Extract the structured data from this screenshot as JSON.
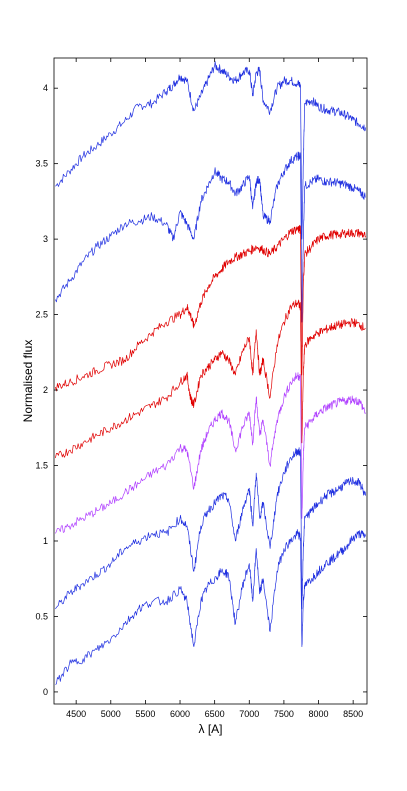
{
  "chart_data": {
    "type": "line",
    "title": "",
    "xlabel": "λ [A]",
    "ylabel": "Normalised flux",
    "xlim": [
      4180,
      8700
    ],
    "ylim": [
      -0.08,
      4.2
    ],
    "xticks": [
      4500,
      5000,
      5500,
      6000,
      6500,
      7000,
      7500,
      8000,
      8500
    ],
    "xtick_labels": [
      "4500",
      "5000",
      "5500",
      "6000",
      "6500",
      "7000",
      "7500",
      "8000",
      "8500"
    ],
    "yticks": [
      0,
      0.5,
      1,
      1.5,
      2,
      2.5,
      3,
      3.5,
      4
    ],
    "ytick_labels": [
      "0",
      "0.5",
      "1",
      "1.5",
      "2",
      "2.5",
      "3",
      "3.5",
      "4"
    ],
    "grid": false,
    "legend": "none",
    "series": [
      {
        "color": "#2030e0",
        "x": [
          4200,
          4400,
          4600,
          4800,
          5000,
          5200,
          5400,
          5600,
          5800,
          5900,
          6000,
          6100,
          6200,
          6300,
          6400,
          6500,
          6600,
          6700,
          6800,
          6900,
          7000,
          7050,
          7100,
          7150,
          7200,
          7300,
          7400,
          7500,
          7600,
          7700,
          7740,
          7760,
          7780,
          7800,
          7900,
          8000,
          8100,
          8200,
          8300,
          8400,
          8500,
          8600,
          8680
        ],
        "y": [
          3.35,
          3.45,
          3.55,
          3.62,
          3.7,
          3.78,
          3.88,
          3.9,
          3.98,
          4.02,
          4.08,
          4.05,
          3.85,
          3.95,
          4.05,
          4.15,
          4.12,
          4.08,
          4.05,
          4.1,
          4.12,
          3.95,
          4.1,
          4.12,
          3.92,
          3.85,
          4.0,
          4.05,
          4.05,
          4.03,
          4.02,
          3.0,
          3.5,
          3.9,
          3.92,
          3.88,
          3.86,
          3.85,
          3.84,
          3.82,
          3.79,
          3.76,
          3.74
        ]
      },
      {
        "color": "#2030e0",
        "x": [
          4200,
          4400,
          4600,
          4800,
          5000,
          5200,
          5400,
          5600,
          5800,
          5900,
          6000,
          6100,
          6200,
          6300,
          6400,
          6500,
          6600,
          6700,
          6800,
          6900,
          7000,
          7050,
          7100,
          7150,
          7200,
          7300,
          7400,
          7500,
          7600,
          7700,
          7740,
          7760,
          7780,
          7800,
          7900,
          8000,
          8100,
          8200,
          8300,
          8400,
          8500,
          8600,
          8680
        ],
        "y": [
          2.6,
          2.72,
          2.85,
          2.95,
          3.02,
          3.1,
          3.12,
          3.15,
          3.1,
          3.0,
          3.18,
          3.1,
          3.0,
          3.25,
          3.35,
          3.45,
          3.4,
          3.38,
          3.3,
          3.35,
          3.42,
          3.2,
          3.38,
          3.4,
          3.15,
          3.12,
          3.35,
          3.45,
          3.52,
          3.55,
          3.55,
          2.45,
          3.0,
          3.35,
          3.38,
          3.4,
          3.38,
          3.38,
          3.37,
          3.36,
          3.34,
          3.31,
          3.28
        ]
      },
      {
        "color": "#e00000",
        "x": [
          4200,
          4400,
          4600,
          4800,
          5000,
          5200,
          5400,
          5600,
          5800,
          6000,
          6100,
          6150,
          6200,
          6300,
          6400,
          6500,
          6600,
          6700,
          6800,
          6900,
          7000,
          7100,
          7200,
          7300,
          7400,
          7500,
          7600,
          7700,
          7740,
          7760,
          7780,
          7800,
          7900,
          8000,
          8100,
          8200,
          8300,
          8400,
          8500,
          8600,
          8680
        ],
        "y": [
          2.02,
          2.05,
          2.09,
          2.13,
          2.17,
          2.2,
          2.3,
          2.38,
          2.45,
          2.5,
          2.55,
          2.5,
          2.42,
          2.58,
          2.68,
          2.75,
          2.8,
          2.85,
          2.88,
          2.9,
          2.92,
          2.95,
          2.93,
          2.9,
          2.95,
          3.0,
          3.05,
          3.07,
          3.06,
          2.1,
          2.7,
          2.9,
          2.95,
          3.0,
          3.02,
          3.03,
          3.03,
          3.04,
          3.04,
          3.04,
          3.02
        ]
      },
      {
        "color": "#e00000",
        "x": [
          4200,
          4400,
          4600,
          4800,
          5000,
          5200,
          5400,
          5600,
          5800,
          6000,
          6100,
          6150,
          6200,
          6300,
          6400,
          6500,
          6600,
          6700,
          6800,
          6900,
          7000,
          7050,
          7100,
          7150,
          7200,
          7300,
          7400,
          7500,
          7600,
          7700,
          7740,
          7760,
          7780,
          7800,
          7900,
          8000,
          8100,
          8200,
          8300,
          8400,
          8500,
          8600,
          8680
        ],
        "y": [
          1.55,
          1.6,
          1.65,
          1.7,
          1.75,
          1.8,
          1.85,
          1.9,
          1.95,
          2.05,
          2.1,
          1.95,
          1.9,
          2.1,
          2.15,
          2.2,
          2.25,
          2.2,
          2.1,
          2.25,
          2.35,
          2.1,
          2.4,
          2.1,
          2.2,
          1.95,
          2.3,
          2.45,
          2.55,
          2.58,
          2.55,
          1.65,
          2.1,
          2.3,
          2.35,
          2.38,
          2.4,
          2.42,
          2.43,
          2.44,
          2.45,
          2.43,
          2.41
        ]
      },
      {
        "color": "#b040ff",
        "x": [
          4200,
          4400,
          4600,
          4800,
          5000,
          5200,
          5400,
          5600,
          5800,
          6000,
          6100,
          6200,
          6300,
          6400,
          6500,
          6600,
          6700,
          6800,
          6900,
          7000,
          7050,
          7100,
          7150,
          7200,
          7300,
          7400,
          7500,
          7600,
          7700,
          7740,
          7760,
          7780,
          7800,
          7900,
          8000,
          8100,
          8200,
          8300,
          8400,
          8500,
          8600,
          8680
        ],
        "y": [
          1.05,
          1.1,
          1.15,
          1.2,
          1.25,
          1.32,
          1.38,
          1.45,
          1.5,
          1.62,
          1.6,
          1.35,
          1.6,
          1.72,
          1.8,
          1.85,
          1.8,
          1.6,
          1.75,
          1.85,
          1.65,
          1.95,
          1.7,
          1.8,
          1.5,
          1.8,
          1.95,
          2.05,
          2.1,
          2.08,
          1.15,
          1.55,
          1.75,
          1.8,
          1.85,
          1.88,
          1.9,
          1.92,
          1.93,
          1.94,
          1.92,
          1.85
        ]
      },
      {
        "color": "#2030e0",
        "x": [
          4200,
          4400,
          4600,
          4800,
          5000,
          5200,
          5400,
          5600,
          5800,
          6000,
          6100,
          6200,
          6300,
          6400,
          6500,
          6600,
          6700,
          6800,
          6900,
          7000,
          7050,
          7100,
          7150,
          7200,
          7300,
          7400,
          7500,
          7600,
          7700,
          7740,
          7760,
          7780,
          7800,
          7900,
          8000,
          8100,
          8200,
          8300,
          8400,
          8500,
          8600,
          8680
        ],
        "y": [
          0.55,
          0.65,
          0.72,
          0.78,
          0.85,
          0.95,
          1.0,
          1.05,
          1.05,
          1.15,
          1.1,
          0.8,
          1.1,
          1.2,
          1.25,
          1.3,
          1.28,
          1.0,
          1.2,
          1.35,
          1.1,
          1.45,
          1.15,
          1.25,
          0.95,
          1.3,
          1.45,
          1.55,
          1.6,
          1.58,
          0.55,
          0.95,
          1.15,
          1.2,
          1.25,
          1.3,
          1.32,
          1.35,
          1.38,
          1.4,
          1.38,
          1.3
        ]
      },
      {
        "color": "#2030e0",
        "x": [
          4200,
          4400,
          4600,
          4800,
          5000,
          5200,
          5400,
          5600,
          5800,
          6000,
          6100,
          6200,
          6300,
          6400,
          6500,
          6600,
          6700,
          6800,
          6900,
          7000,
          7050,
          7100,
          7150,
          7200,
          7300,
          7400,
          7500,
          7600,
          7700,
          7740,
          7760,
          7780,
          7800,
          7900,
          8000,
          8100,
          8200,
          8300,
          8400,
          8500,
          8600,
          8680
        ],
        "y": [
          0.05,
          0.18,
          0.22,
          0.28,
          0.35,
          0.45,
          0.55,
          0.6,
          0.6,
          0.68,
          0.6,
          0.3,
          0.6,
          0.7,
          0.75,
          0.8,
          0.78,
          0.45,
          0.7,
          0.85,
          0.6,
          0.95,
          0.65,
          0.75,
          0.4,
          0.8,
          0.95,
          1.0,
          1.05,
          1.02,
          0.3,
          0.6,
          0.7,
          0.75,
          0.8,
          0.85,
          0.88,
          0.92,
          0.96,
          1.02,
          1.05,
          1.03
        ]
      }
    ]
  }
}
